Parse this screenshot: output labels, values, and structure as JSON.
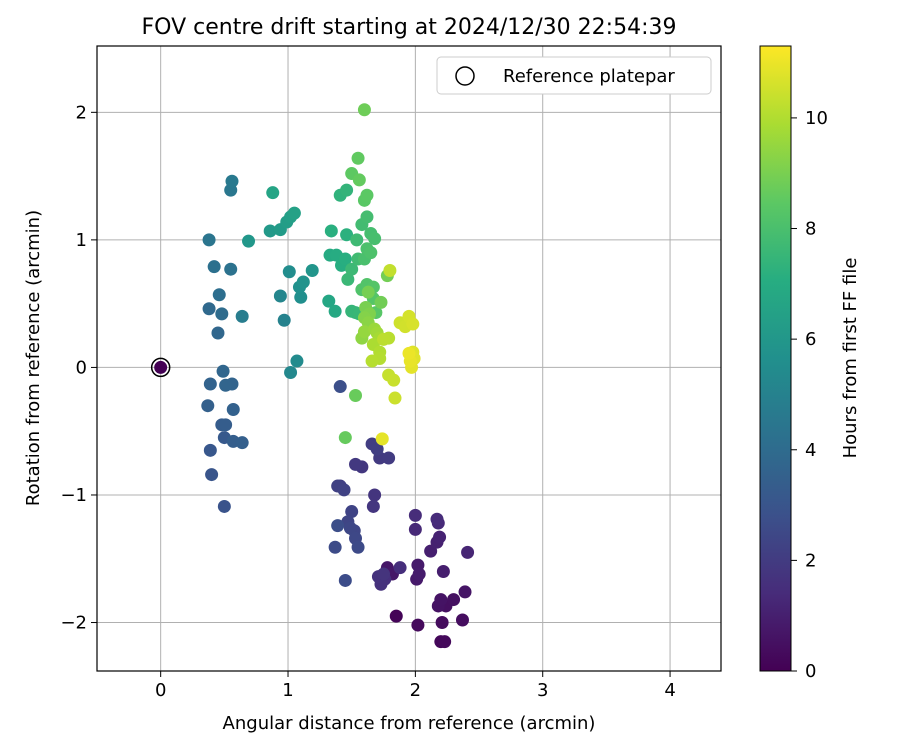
{
  "chart_data": {
    "type": "scatter",
    "title": "FOV centre drift starting at 2024/12/30 22:54:39",
    "xlabel": "Angular distance from reference (arcmin)",
    "ylabel": "Rotation from reference (arcmin)",
    "xlim": [
      -0.5,
      4.4
    ],
    "ylim": [
      -2.38,
      2.52
    ],
    "xticks": [
      0,
      1,
      2,
      3,
      4
    ],
    "xtick_labels": [
      "0",
      "1",
      "2",
      "3",
      "4"
    ],
    "yticks": [
      -2,
      -1,
      0,
      1,
      2
    ],
    "ytick_labels": [
      "−2",
      "−1",
      "0",
      "1",
      "2"
    ],
    "grid": true,
    "legend": {
      "label": "Reference platepar",
      "position": "top-right",
      "marker": "open-circle"
    },
    "reference_point": {
      "x": 0,
      "y": 0
    },
    "colorbar": {
      "label": "Hours from first FF file",
      "min": 0,
      "max": 11.3,
      "ticks": [
        0,
        2,
        4,
        6,
        8,
        10
      ],
      "tick_labels": [
        "0",
        "2",
        "4",
        "6",
        "8",
        "10"
      ],
      "colormap": "viridis",
      "colors": [
        "#440154",
        "#472c7a",
        "#3b518b",
        "#2c718e",
        "#21908d",
        "#27ad81",
        "#5cc863",
        "#aadc32",
        "#fde725"
      ]
    },
    "points": [
      [
        0,
        0,
        0.0
      ],
      [
        1.85,
        -1.95,
        0.1
      ],
      [
        2.2,
        -2.15,
        0.2
      ],
      [
        2.23,
        -2.15,
        0.25
      ],
      [
        2.02,
        -2.02,
        0.3
      ],
      [
        2.21,
        -2.0,
        0.35
      ],
      [
        2.37,
        -1.98,
        0.4
      ],
      [
        2.24,
        -1.87,
        0.45
      ],
      [
        2.3,
        -1.82,
        0.5
      ],
      [
        2.18,
        -1.87,
        0.55
      ],
      [
        2.2,
        -1.82,
        0.6
      ],
      [
        2.39,
        -1.76,
        0.65
      ],
      [
        1.78,
        -1.57,
        0.7
      ],
      [
        1.82,
        -1.62,
        0.75
      ],
      [
        2.01,
        -1.66,
        0.8
      ],
      [
        2.02,
        -1.55,
        0.85
      ],
      [
        2.03,
        -1.62,
        0.9
      ],
      [
        2.22,
        -1.6,
        0.95
      ],
      [
        2.12,
        -1.44,
        1.0
      ],
      [
        2.17,
        -1.37,
        1.05
      ],
      [
        2.19,
        -1.33,
        1.1
      ],
      [
        2.41,
        -1.45,
        1.2
      ],
      [
        2.0,
        -1.27,
        1.3
      ],
      [
        2.18,
        -1.22,
        1.35
      ],
      [
        2.17,
        -1.19,
        1.4
      ],
      [
        2.0,
        -1.16,
        1.45
      ],
      [
        1.88,
        -1.57,
        1.5
      ],
      [
        1.76,
        -1.66,
        1.55
      ],
      [
        1.73,
        -1.7,
        1.6
      ],
      [
        1.71,
        -1.64,
        1.65
      ],
      [
        1.75,
        -1.62,
        1.7
      ],
      [
        1.68,
        -1.0,
        1.75
      ],
      [
        1.67,
        -1.09,
        1.8
      ],
      [
        1.58,
        -0.78,
        1.85
      ],
      [
        1.53,
        -0.76,
        1.9
      ],
      [
        1.72,
        -0.71,
        1.95
      ],
      [
        1.79,
        -0.71,
        2.0
      ],
      [
        1.66,
        -0.6,
        2.05
      ],
      [
        1.7,
        -0.64,
        2.1
      ],
      [
        1.41,
        -0.93,
        2.15
      ],
      [
        1.39,
        -0.93,
        2.2
      ],
      [
        1.44,
        -0.96,
        2.25
      ],
      [
        1.5,
        -1.13,
        2.3
      ],
      [
        1.47,
        -1.21,
        2.35
      ],
      [
        1.52,
        -1.28,
        2.4
      ],
      [
        1.49,
        -1.26,
        2.45
      ],
      [
        1.53,
        -1.34,
        2.5
      ],
      [
        1.55,
        -1.41,
        2.55
      ],
      [
        1.37,
        -1.41,
        2.6
      ],
      [
        1.45,
        -1.67,
        2.65
      ],
      [
        1.39,
        -1.24,
        2.7
      ],
      [
        1.41,
        -0.15,
        2.75
      ],
      [
        0.5,
        -1.09,
        2.9
      ],
      [
        0.4,
        -0.84,
        3.0
      ],
      [
        0.39,
        -0.65,
        3.1
      ],
      [
        0.5,
        -0.55,
        3.2
      ],
      [
        0.48,
        -0.45,
        3.3
      ],
      [
        0.51,
        -0.45,
        3.35
      ],
      [
        0.57,
        -0.58,
        3.4
      ],
      [
        0.64,
        -0.59,
        3.45
      ],
      [
        0.37,
        -0.3,
        3.5
      ],
      [
        0.57,
        -0.33,
        3.55
      ],
      [
        0.39,
        -0.13,
        3.6
      ],
      [
        0.56,
        -0.13,
        3.65
      ],
      [
        0.51,
        -0.14,
        3.7
      ],
      [
        0.49,
        -0.03,
        3.75
      ],
      [
        0.45,
        0.27,
        3.8
      ],
      [
        0.38,
        0.46,
        3.9
      ],
      [
        0.48,
        0.42,
        4.0
      ],
      [
        0.46,
        0.57,
        4.1
      ],
      [
        0.42,
        0.79,
        4.2
      ],
      [
        0.55,
        0.77,
        4.3
      ],
      [
        0.38,
        1.0,
        4.4
      ],
      [
        0.55,
        1.39,
        4.5
      ],
      [
        0.56,
        1.46,
        4.6
      ],
      [
        0.64,
        0.4,
        4.8
      ],
      [
        0.97,
        0.37,
        5.0
      ],
      [
        0.94,
        0.56,
        5.2
      ],
      [
        1.02,
        -0.04,
        5.3
      ],
      [
        1.07,
        0.05,
        5.4
      ],
      [
        1.01,
        0.75,
        5.5
      ],
      [
        1.1,
        0.55,
        5.6
      ],
      [
        1.09,
        0.63,
        5.7
      ],
      [
        1.12,
        0.67,
        5.8
      ],
      [
        1.19,
        0.76,
        5.9
      ],
      [
        0.69,
        0.99,
        6.0
      ],
      [
        0.86,
        1.07,
        6.1
      ],
      [
        0.94,
        1.08,
        6.2
      ],
      [
        0.99,
        1.14,
        6.3
      ],
      [
        1.02,
        1.18,
        6.4
      ],
      [
        1.05,
        1.21,
        6.5
      ],
      [
        0.88,
        1.37,
        6.6
      ],
      [
        1.32,
        0.52,
        6.7
      ],
      [
        1.37,
        0.44,
        6.8
      ],
      [
        1.33,
        0.88,
        6.9
      ],
      [
        1.38,
        0.88,
        7.0
      ],
      [
        1.42,
        0.8,
        7.05
      ],
      [
        1.45,
        0.85,
        7.1
      ],
      [
        1.34,
        1.07,
        7.15
      ],
      [
        1.46,
        1.04,
        7.2
      ],
      [
        1.41,
        1.35,
        7.3
      ],
      [
        1.46,
        1.39,
        7.4
      ],
      [
        1.5,
        0.44,
        7.45
      ],
      [
        1.53,
        0.43,
        7.5
      ],
      [
        1.56,
        0.42,
        7.55
      ],
      [
        1.47,
        0.69,
        7.6
      ],
      [
        1.5,
        0.77,
        7.65
      ],
      [
        1.54,
        1.0,
        7.7
      ],
      [
        1.55,
        0.85,
        7.75
      ],
      [
        1.58,
        1.12,
        7.8
      ],
      [
        1.62,
        1.18,
        7.85
      ],
      [
        1.65,
        1.05,
        7.9
      ],
      [
        1.68,
        1.01,
        7.95
      ],
      [
        1.6,
        0.85,
        8.0
      ],
      [
        1.62,
        0.93,
        8.05
      ],
      [
        1.65,
        0.9,
        8.1
      ],
      [
        1.58,
        0.61,
        8.15
      ],
      [
        1.62,
        0.65,
        8.2
      ],
      [
        1.67,
        0.63,
        8.25
      ],
      [
        1.67,
        0.54,
        8.3
      ],
      [
        1.69,
        0.43,
        8.35
      ],
      [
        1.6,
        1.31,
        8.4
      ],
      [
        1.62,
        1.35,
        8.45
      ],
      [
        1.5,
        1.52,
        8.5
      ],
      [
        1.55,
        1.64,
        8.55
      ],
      [
        1.56,
        1.47,
        8.6
      ],
      [
        1.45,
        -0.55,
        8.65
      ],
      [
        1.53,
        -0.22,
        8.7
      ],
      [
        1.6,
        2.02,
        8.8
      ],
      [
        1.73,
        0.51,
        8.85
      ],
      [
        1.78,
        0.72,
        8.9
      ],
      [
        1.63,
        0.59,
        8.95
      ],
      [
        1.61,
        0.47,
        9.0
      ],
      [
        1.64,
        0.42,
        9.1
      ],
      [
        1.6,
        0.39,
        9.2
      ],
      [
        1.63,
        0.35,
        9.3
      ],
      [
        1.58,
        0.23,
        9.4
      ],
      [
        1.6,
        0.28,
        9.5
      ],
      [
        1.68,
        0.3,
        9.6
      ],
      [
        1.7,
        0.27,
        9.7
      ],
      [
        1.72,
        0.23,
        9.8
      ],
      [
        1.67,
        0.18,
        9.9
      ],
      [
        1.72,
        0.12,
        10.0
      ],
      [
        1.72,
        0.07,
        10.05
      ],
      [
        1.66,
        0.05,
        10.1
      ],
      [
        1.79,
        0.23,
        10.15
      ],
      [
        1.75,
        0.22,
        10.2
      ],
      [
        1.8,
        0.76,
        10.3
      ],
      [
        1.79,
        -0.06,
        10.35
      ],
      [
        1.83,
        -0.1,
        10.4
      ],
      [
        1.84,
        -0.24,
        10.45
      ],
      [
        1.88,
        0.35,
        10.5
      ],
      [
        1.92,
        0.32,
        10.55
      ],
      [
        1.95,
        0.4,
        10.6
      ],
      [
        1.98,
        0.34,
        10.65
      ],
      [
        1.96,
        0.1,
        10.7
      ],
      [
        1.98,
        0.12,
        10.75
      ],
      [
        1.99,
        0.07,
        10.8
      ],
      [
        1.97,
        0.0,
        10.85
      ],
      [
        1.74,
        -0.56,
        10.9
      ],
      [
        1.96,
        0.05,
        10.95
      ],
      [
        1.95,
        0.11,
        11.0
      ]
    ]
  }
}
